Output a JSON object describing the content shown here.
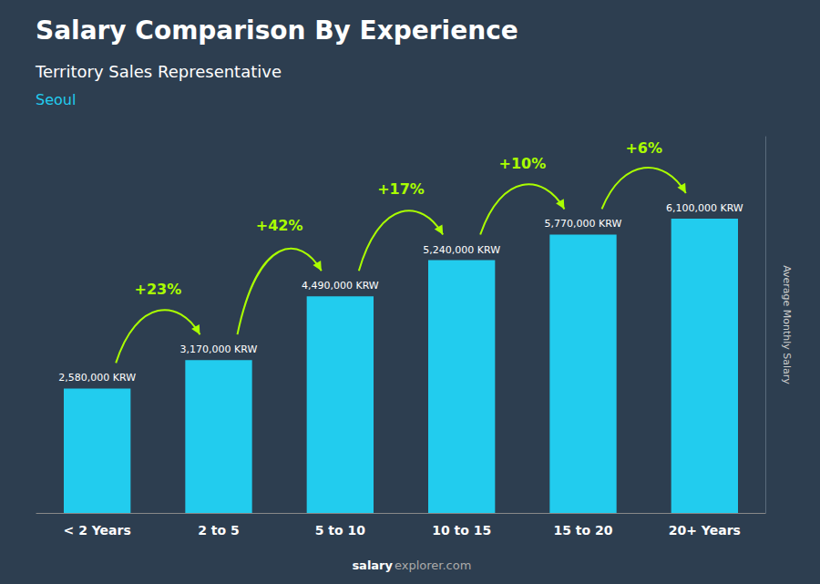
{
  "chart_data": {
    "type": "bar",
    "title": "Salary Comparison By Experience",
    "subtitle": "Territory Sales Representative",
    "location": "Seoul",
    "ylabel": "Average Monthly Salary",
    "footer": [
      "salary",
      "explorer.com"
    ],
    "categories": [
      "< 2 Years",
      "2 to 5",
      "5 to 10",
      "10 to 15",
      "15 to 20",
      "20+ Years"
    ],
    "values": [
      2580000,
      3170000,
      4490000,
      5240000,
      5770000,
      6100000
    ],
    "value_labels": [
      "2,580,000 KRW",
      "3,170,000 KRW",
      "4,490,000 KRW",
      "5,240,000 KRW",
      "5,770,000 KRW",
      "6,100,000 KRW"
    ],
    "data_labels": true,
    "color": "#22CCEE",
    "ylim": [
      0,
      7800000
    ],
    "grid": false,
    "tick_labels": "x",
    "annotations": [
      {
        "text": "+23%",
        "from": "< 2 Years",
        "to": "2 to 5"
      },
      {
        "text": "+42%",
        "from": "2 to 5",
        "to": "5 to 10"
      },
      {
        "text": "+17%",
        "from": "5 to 10",
        "to": "10 to 15"
      },
      {
        "text": "+10%",
        "from": "10 to 15",
        "to": "15 to 20"
      },
      {
        "text": "+6%",
        "from": "15 to 20",
        "to": "20+ Years"
      }
    ]
  }
}
